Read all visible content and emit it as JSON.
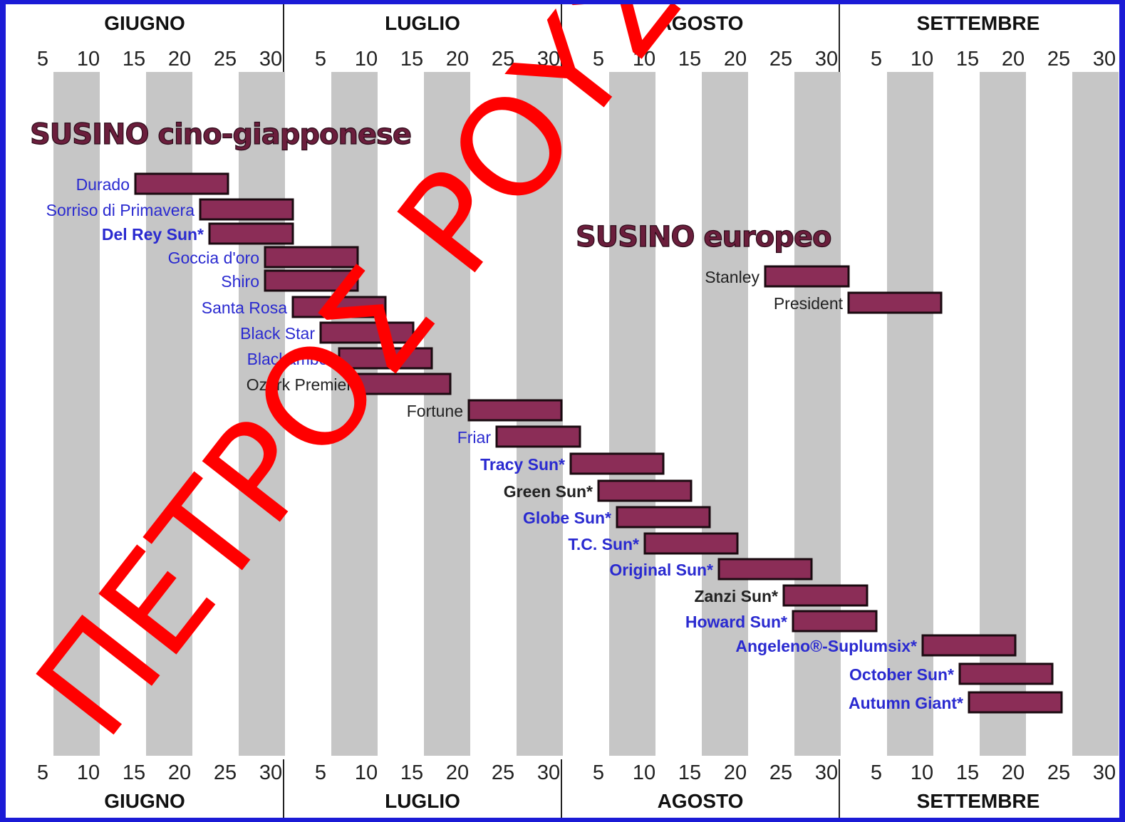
{
  "chart_data": {
    "type": "gantt",
    "months": [
      "GIUGNO",
      "LUGLIO",
      "AGOSTO",
      "SETTEMBRE"
    ],
    "day_ticks": [
      5,
      10,
      15,
      20,
      25,
      30
    ],
    "x_unit": "day of season (June 1 = day 0)",
    "groups": [
      {
        "title": "SUSINO cino-giapponese",
        "items": [
          {
            "label": "Durado",
            "color": "#2a2ad0",
            "bold": false,
            "start": "June 14",
            "end": "June 24"
          },
          {
            "label": "Sorriso di Primavera",
            "color": "#2a2ad0",
            "bold": false,
            "start": "June 21",
            "end": "July 1"
          },
          {
            "label": "Del Rey Sun*",
            "color": "#2a2ad0",
            "bold": true,
            "start": "June 22",
            "end": "July 1"
          },
          {
            "label": "Goccia d'oro",
            "color": "#2a2ad0",
            "bold": false,
            "start": "June 28",
            "end": "July 8"
          },
          {
            "label": "Shiro",
            "color": "#2a2ad0",
            "bold": false,
            "start": "June 28",
            "end": "July 8"
          },
          {
            "label": "Santa Rosa",
            "color": "#2a2ad0",
            "bold": false,
            "start": "July 1",
            "end": "July 11"
          },
          {
            "label": "Black Star",
            "color": "#2a2ad0",
            "bold": false,
            "start": "July 4",
            "end": "July 14"
          },
          {
            "label": "Blackamber",
            "color": "#2a2ad0",
            "bold": false,
            "start": "July 6",
            "end": "July 16"
          },
          {
            "label": "Ozark Premier",
            "color": "#222222",
            "bold": false,
            "start": "July 8",
            "end": "July 18"
          },
          {
            "label": "Fortune",
            "color": "#222222",
            "bold": false,
            "start": "July 20",
            "end": "July 30"
          },
          {
            "label": "Friar",
            "color": "#2a2ad0",
            "bold": false,
            "start": "July 23",
            "end": "August 2"
          },
          {
            "label": "Tracy Sun*",
            "color": "#2a2ad0",
            "bold": true,
            "start": "August 1",
            "end": "August 11"
          },
          {
            "label": "Green Sun*",
            "color": "#222222",
            "bold": true,
            "start": "August 4",
            "end": "August 14"
          },
          {
            "label": "Globe Sun*",
            "color": "#2a2ad0",
            "bold": true,
            "start": "August 6",
            "end": "August 16"
          },
          {
            "label": "T.C. Sun*",
            "color": "#2a2ad0",
            "bold": true,
            "start": "August 9",
            "end": "August 19"
          },
          {
            "label": "Original Sun*",
            "color": "#2a2ad0",
            "bold": true,
            "start": "August 17",
            "end": "August 27"
          },
          {
            "label": "Zanzi Sun*",
            "color": "#222222",
            "bold": true,
            "start": "August 24",
            "end": "September 3"
          },
          {
            "label": "Howard Sun*",
            "color": "#2a2ad0",
            "bold": true,
            "start": "August 25",
            "end": "September 4"
          },
          {
            "label": "Angeleno®-Suplumsix*",
            "color": "#2a2ad0",
            "bold": true,
            "start": "September 9",
            "end": "September 19"
          },
          {
            "label": "October Sun*",
            "color": "#2a2ad0",
            "bold": true,
            "start": "September 13",
            "end": "September 23"
          },
          {
            "label": "Autumn Giant*",
            "color": "#2a2ad0",
            "bold": true,
            "start": "September 14",
            "end": "September 24"
          }
        ]
      },
      {
        "title": "SUSINO europeo",
        "items": [
          {
            "label": "Stanley",
            "color": "#222222",
            "bold": false,
            "start": "August 22",
            "end": "September 1"
          },
          {
            "label": "President",
            "color": "#222222",
            "bold": false,
            "start": "September 1",
            "end": "September 11"
          }
        ]
      }
    ],
    "bar_color": "#8b2d57",
    "stripe_color": "#c6c6c6",
    "watermark": "ΠΕΤΡΟΣ ΡΟΥΣΣΟ",
    "watermark_color": "#ff0000"
  }
}
